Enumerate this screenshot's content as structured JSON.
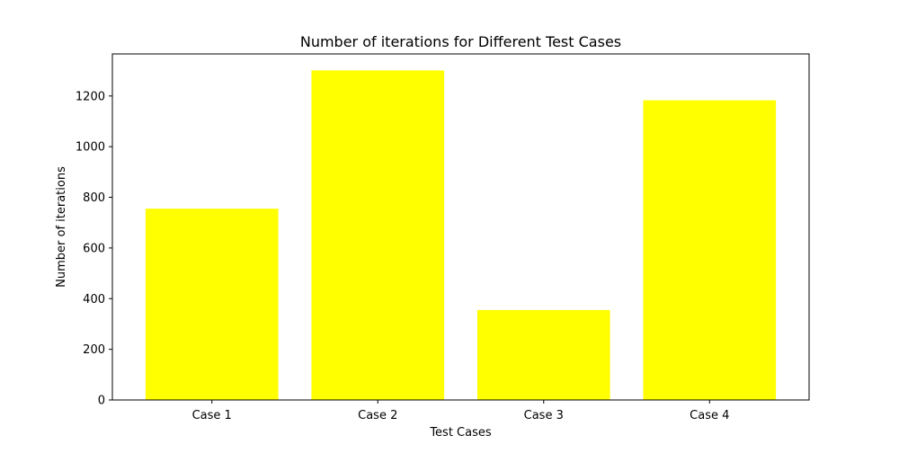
{
  "chart_data": {
    "type": "bar",
    "title": "Number of iterations for Different Test Cases",
    "xlabel": "Test Cases",
    "ylabel": "Number of iterations",
    "categories": [
      "Case 1",
      "Case 2",
      "Case 3",
      "Case 4"
    ],
    "values": [
      755,
      1301,
      355,
      1183
    ],
    "ylim": [
      0,
      1366
    ],
    "yticks": [
      0,
      200,
      400,
      600,
      800,
      1000,
      1200
    ],
    "ytick_labels": [
      "0",
      "200",
      "400",
      "600",
      "800",
      "1000",
      "1200"
    ],
    "bar_color": "#ffff00",
    "grid": false
  }
}
